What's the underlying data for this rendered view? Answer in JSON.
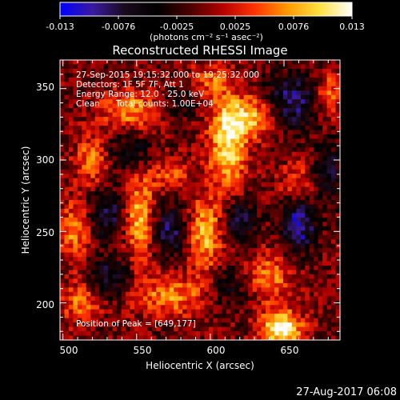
{
  "colorbar": {
    "ticks": [
      "-0.013",
      "-0.0076",
      "-0.0025",
      "0.0025",
      "0.0076",
      "0.013"
    ],
    "unit_label": "(photons cm⁻² s⁻¹ asec⁻²)",
    "stops": [
      "#0000ff",
      "#3a1aa0",
      "#1a0a1a",
      "#000000",
      "#4a0000",
      "#b40000",
      "#ff3300",
      "#ff9900",
      "#ffe040",
      "#ffffff"
    ]
  },
  "chart_data": {
    "type": "heatmap",
    "title": "Reconstructed RHESSI Image",
    "xlabel": "Heliocentric X (arcsec)",
    "ylabel": "Heliocentric Y (arcsec)",
    "xlim": [
      498,
      688
    ],
    "ylim": [
      174,
      370
    ],
    "x_ticks": [
      "500",
      "550",
      "600",
      "650"
    ],
    "y_ticks": [
      "200",
      "250",
      "300",
      "350"
    ],
    "x_tick_values": [
      500,
      550,
      600,
      650
    ],
    "y_tick_values": [
      200,
      250,
      300,
      350
    ],
    "color_range": [
      -0.013,
      0.013
    ],
    "annotations": [
      "27-Sep-2015 19:15:32.000 to 19:25:32.000",
      "Detectors: 1F 5F 7F, Att 1",
      "Energy Range: 12.0 - 25.0 keV",
      "Clean      Total counts: 1.00E+04"
    ],
    "peak_label": "Position of Peak = [649,177]",
    "peak": [
      649,
      177
    ],
    "features": [
      {
        "x": 648,
        "y": 182,
        "sx": 10,
        "sy": 9,
        "amp": 1.05
      },
      {
        "x": 612,
        "y": 310,
        "sx": 9,
        "sy": 22,
        "amp": 0.85
      },
      {
        "x": 628,
        "y": 330,
        "sx": 14,
        "sy": 10,
        "amp": 0.7
      },
      {
        "x": 597,
        "y": 248,
        "sx": 8,
        "sy": 18,
        "amp": 0.7
      },
      {
        "x": 552,
        "y": 260,
        "sx": 7,
        "sy": 22,
        "amp": 0.7
      },
      {
        "x": 545,
        "y": 335,
        "sx": 14,
        "sy": 10,
        "amp": 0.6
      },
      {
        "x": 520,
        "y": 300,
        "sx": 8,
        "sy": 12,
        "amp": 0.55
      },
      {
        "x": 508,
        "y": 250,
        "sx": 7,
        "sy": 15,
        "amp": 0.55
      },
      {
        "x": 573,
        "y": 205,
        "sx": 18,
        "sy": 10,
        "amp": 0.55
      },
      {
        "x": 640,
        "y": 218,
        "sx": 10,
        "sy": 12,
        "amp": 0.55
      },
      {
        "x": 680,
        "y": 345,
        "sx": 6,
        "sy": 12,
        "amp": 0.5
      },
      {
        "x": 512,
        "y": 200,
        "sx": 9,
        "sy": 10,
        "amp": 0.5
      },
      {
        "x": 572,
        "y": 290,
        "sx": 10,
        "sy": 8,
        "amp": 0.4
      },
      {
        "x": 600,
        "y": 355,
        "sx": 10,
        "sy": 8,
        "amp": 0.45
      },
      {
        "x": 658,
        "y": 285,
        "sx": 8,
        "sy": 10,
        "amp": 0.35
      },
      {
        "x": 660,
        "y": 255,
        "sx": 8,
        "sy": 12,
        "amp": -0.85
      },
      {
        "x": 620,
        "y": 258,
        "sx": 8,
        "sy": 10,
        "amp": -0.6
      },
      {
        "x": 572,
        "y": 250,
        "sx": 8,
        "sy": 12,
        "amp": -0.6
      },
      {
        "x": 530,
        "y": 262,
        "sx": 8,
        "sy": 12,
        "amp": -0.6
      },
      {
        "x": 532,
        "y": 218,
        "sx": 10,
        "sy": 10,
        "amp": -0.5
      },
      {
        "x": 655,
        "y": 340,
        "sx": 12,
        "sy": 14,
        "amp": -0.7
      },
      {
        "x": 545,
        "y": 305,
        "sx": 10,
        "sy": 10,
        "amp": -0.45
      },
      {
        "x": 680,
        "y": 292,
        "sx": 6,
        "sy": 14,
        "amp": -0.5
      },
      {
        "x": 612,
        "y": 210,
        "sx": 10,
        "sy": 10,
        "amp": -0.35
      },
      {
        "x": 580,
        "y": 340,
        "sx": 10,
        "sy": 8,
        "amp": -0.3
      }
    ]
  },
  "timestamp": "27-Aug-2017 06:08"
}
